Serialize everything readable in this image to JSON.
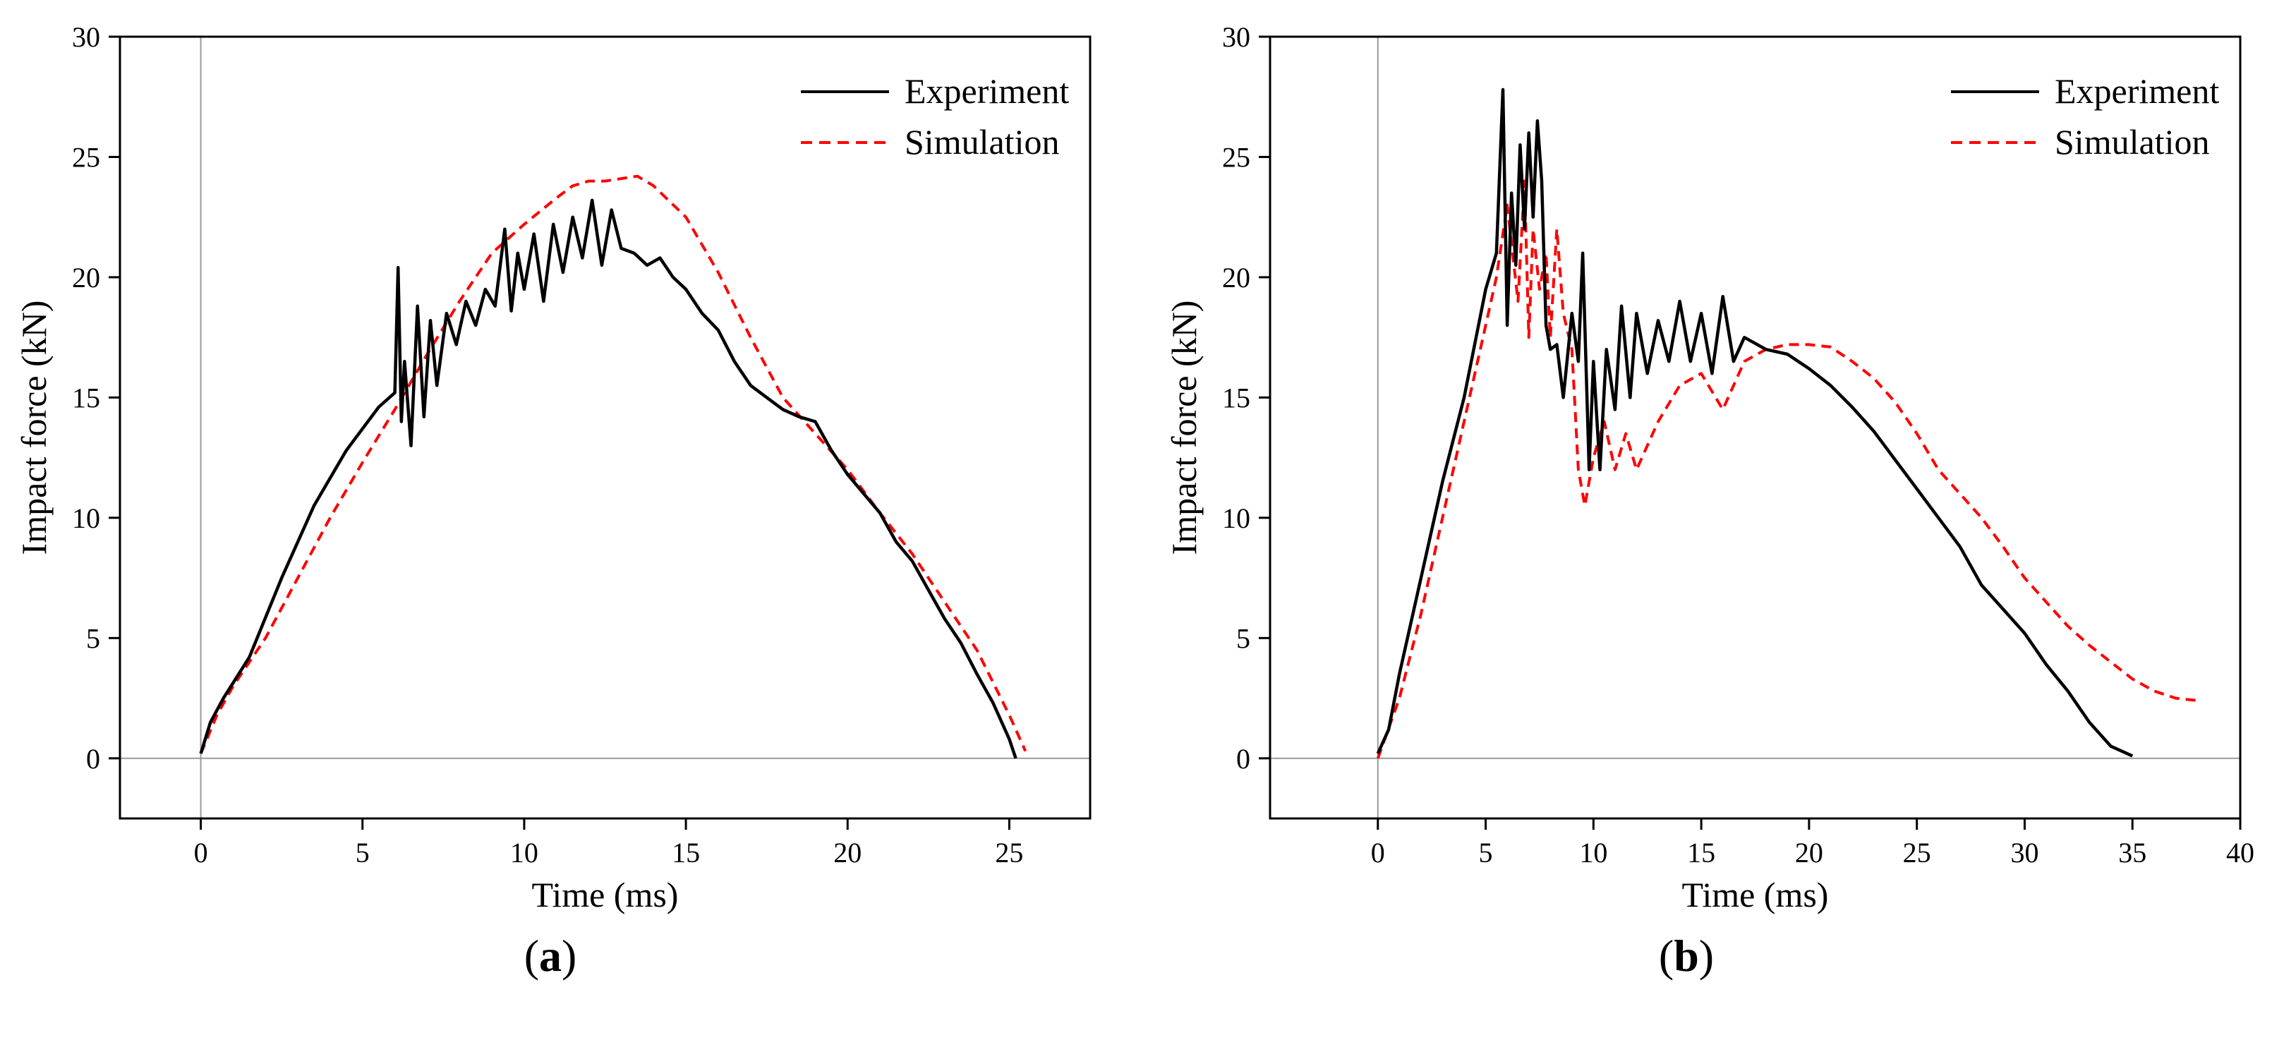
{
  "chart_data": [
    {
      "type": "line",
      "panel": "a",
      "caption": "a",
      "xlabel": "Time (ms)",
      "ylabel": "Impact force (kN)",
      "xlim": [
        -2.5,
        27.5
      ],
      "ylim": [
        -2.5,
        30
      ],
      "xticks": [
        0,
        5,
        10,
        15,
        20,
        25
      ],
      "yticks": [
        0,
        5,
        10,
        15,
        20,
        25,
        30
      ],
      "legend": "top-right",
      "series": [
        {
          "name": "Experiment",
          "color": "#000000",
          "style": "solid",
          "x": [
            0,
            0.3,
            0.7,
            1.5,
            2.5,
            3.5,
            4.5,
            5.5,
            6.0,
            6.1,
            6.2,
            6.3,
            6.5,
            6.7,
            6.9,
            7.1,
            7.3,
            7.6,
            7.9,
            8.2,
            8.5,
            8.8,
            9.1,
            9.4,
            9.6,
            9.8,
            10.0,
            10.3,
            10.6,
            10.9,
            11.2,
            11.5,
            11.8,
            12.1,
            12.4,
            12.7,
            13.0,
            13.4,
            13.8,
            14.2,
            14.6,
            15.0,
            15.5,
            16.0,
            16.5,
            17.0,
            17.5,
            18.0,
            18.5,
            19.0,
            19.5,
            20.0,
            20.5,
            21.0,
            21.5,
            22.0,
            22.5,
            23.0,
            23.5,
            24.0,
            24.5,
            25.0,
            25.2
          ],
          "y": [
            0.2,
            1.5,
            2.5,
            4.2,
            7.5,
            10.5,
            12.8,
            14.6,
            15.2,
            20.4,
            14.0,
            16.5,
            13.0,
            18.8,
            14.2,
            18.2,
            15.5,
            18.5,
            17.2,
            19.0,
            18.0,
            19.5,
            18.8,
            22.0,
            18.6,
            21.0,
            19.5,
            21.8,
            19.0,
            22.2,
            20.2,
            22.5,
            20.8,
            23.2,
            20.5,
            22.8,
            21.2,
            21.0,
            20.5,
            20.8,
            20.0,
            19.5,
            18.5,
            17.8,
            16.5,
            15.5,
            15.0,
            14.5,
            14.2,
            14.0,
            12.8,
            11.8,
            11.0,
            10.2,
            9.0,
            8.2,
            7.0,
            5.8,
            4.8,
            3.5,
            2.3,
            0.8,
            0.0
          ]
        },
        {
          "name": "Simulation",
          "color": "#ff0000",
          "style": "dashed",
          "x": [
            0,
            0.5,
            1.0,
            2.0,
            3.0,
            4.0,
            5.0,
            6.0,
            7.0,
            8.0,
            9.0,
            10.0,
            11.0,
            11.5,
            12.0,
            12.5,
            13.0,
            13.5,
            14.0,
            15.0,
            16.0,
            17.0,
            18.0,
            19.0,
            20.0,
            21.0,
            22.0,
            23.0,
            24.0,
            25.0,
            25.5
          ],
          "y": [
            0.2,
            1.8,
            3.0,
            5.0,
            7.5,
            10.0,
            12.3,
            14.5,
            16.8,
            19.0,
            21.0,
            22.2,
            23.3,
            23.8,
            24.0,
            24.0,
            24.1,
            24.2,
            23.8,
            22.5,
            20.2,
            17.5,
            15.0,
            13.5,
            12.0,
            10.2,
            8.5,
            6.5,
            4.5,
            1.8,
            0.3
          ]
        }
      ]
    },
    {
      "type": "line",
      "panel": "b",
      "caption": "b",
      "xlabel": "Time (ms)",
      "ylabel": "Impact force (kN)",
      "xlim": [
        -5,
        40
      ],
      "ylim": [
        -2.5,
        30
      ],
      "xticks": [
        0,
        5,
        10,
        15,
        20,
        25,
        30,
        35,
        40
      ],
      "yticks": [
        0,
        5,
        10,
        15,
        20,
        25,
        30
      ],
      "legend": "top-right",
      "series": [
        {
          "name": "Experiment",
          "color": "#000000",
          "style": "solid",
          "x": [
            0,
            0.5,
            1.0,
            2.0,
            3.0,
            4.0,
            5.0,
            5.5,
            5.8,
            6.0,
            6.2,
            6.4,
            6.6,
            6.8,
            7.0,
            7.2,
            7.4,
            7.6,
            7.8,
            8.0,
            8.3,
            8.6,
            9.0,
            9.3,
            9.5,
            9.8,
            10.0,
            10.3,
            10.6,
            11.0,
            11.3,
            11.7,
            12.0,
            12.5,
            13.0,
            13.5,
            14.0,
            14.5,
            15.0,
            15.5,
            16.0,
            16.5,
            17.0,
            18.0,
            19.0,
            20.0,
            21.0,
            22.0,
            23.0,
            24.0,
            25.0,
            26.0,
            27.0,
            28.0,
            29.0,
            30.0,
            31.0,
            32.0,
            33.0,
            34.0,
            35.0
          ],
          "y": [
            0.2,
            1.2,
            3.5,
            7.5,
            11.5,
            15.0,
            19.5,
            21.0,
            27.8,
            18.0,
            23.5,
            20.5,
            25.5,
            22.0,
            26.0,
            22.5,
            26.5,
            24.0,
            18.0,
            17.0,
            17.2,
            15.0,
            18.5,
            16.5,
            21.0,
            12.0,
            16.5,
            12.0,
            17.0,
            14.5,
            18.8,
            15.0,
            18.5,
            16.0,
            18.2,
            16.5,
            19.0,
            16.5,
            18.5,
            16.0,
            19.2,
            16.5,
            17.5,
            17.0,
            16.8,
            16.2,
            15.5,
            14.6,
            13.6,
            12.4,
            11.2,
            10.0,
            8.8,
            7.2,
            6.2,
            5.2,
            3.9,
            2.8,
            1.5,
            0.5,
            0.1
          ]
        },
        {
          "name": "Simulation",
          "color": "#ff0000",
          "style": "dashed",
          "x": [
            0,
            1.0,
            2.0,
            3.0,
            4.0,
            5.0,
            5.5,
            6.0,
            6.5,
            6.8,
            7.0,
            7.2,
            7.5,
            7.8,
            8.0,
            8.3,
            8.6,
            9.0,
            9.3,
            9.6,
            10.0,
            10.5,
            11.0,
            11.5,
            12.0,
            12.5,
            13.0,
            14.0,
            15.0,
            16.0,
            17.0,
            18.0,
            19.0,
            20.0,
            21.0,
            22.0,
            23.0,
            24.0,
            25.0,
            26.0,
            27.0,
            28.0,
            29.0,
            30.0,
            31.0,
            32.0,
            33.0,
            34.0,
            35.0,
            36.0,
            37.0,
            38.0
          ],
          "y": [
            0.0,
            2.5,
            6.0,
            10.0,
            14.0,
            18.0,
            20.0,
            23.0,
            19.0,
            24.0,
            17.5,
            22.0,
            19.5,
            21.0,
            17.5,
            22.0,
            18.5,
            17.0,
            12.0,
            10.5,
            12.5,
            14.0,
            12.0,
            13.5,
            12.0,
            13.0,
            14.0,
            15.5,
            16.0,
            14.5,
            16.5,
            17.0,
            17.2,
            17.2,
            17.1,
            16.5,
            15.8,
            14.8,
            13.5,
            12.0,
            11.0,
            10.0,
            8.8,
            7.5,
            6.5,
            5.5,
            4.7,
            4.0,
            3.3,
            2.8,
            2.5,
            2.4
          ]
        }
      ]
    }
  ]
}
